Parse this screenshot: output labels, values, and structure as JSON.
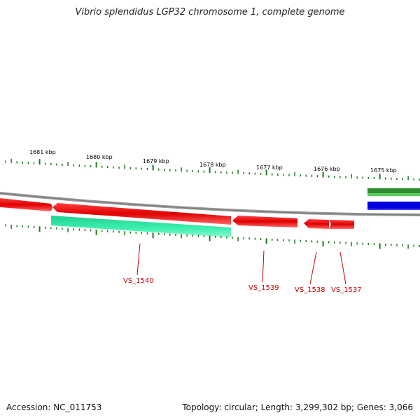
{
  "title": "Vibrio splendidus LGP32 chromosome 1, complete genome",
  "footer": {
    "accession": "Accession: NC_011753",
    "summary": "Topology: circular; Length: 3,299,302 bp; Genes: 3,066"
  },
  "scale_labels": [
    "1681 kbp",
    "1680 kbp",
    "1679 kbp",
    "1678 kbp",
    "1677 kbp",
    "1676 kbp",
    "1675 kbp"
  ],
  "gene_labels": [
    "VS_1540",
    "VS_1539",
    "VS_1538",
    "VS_1537"
  ],
  "colors": {
    "forward_cds": "#e00000",
    "reverse_cds": "#33e6a6",
    "ruler_tick": "#1a7a1a",
    "backbone": "#888888",
    "gc_green": "#2e8b2e",
    "gc_blue": "#0000dd",
    "label": "#cc0000"
  }
}
